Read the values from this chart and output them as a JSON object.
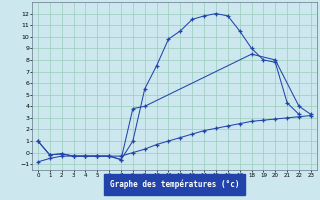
{
  "title": "Graphe des températures (°c)",
  "background_color": "#cce8ee",
  "grid_color": "#99ccbb",
  "line_color": "#2244aa",
  "xlim": [
    -0.5,
    23.5
  ],
  "ylim": [
    -1.5,
    13.0
  ],
  "xticks": [
    0,
    1,
    2,
    3,
    4,
    5,
    6,
    7,
    8,
    9,
    10,
    11,
    12,
    13,
    14,
    15,
    16,
    17,
    18,
    19,
    20,
    21,
    22,
    23
  ],
  "yticks": [
    -1,
    0,
    1,
    2,
    3,
    4,
    5,
    6,
    7,
    8,
    9,
    10,
    11,
    12
  ],
  "line1_x": [
    0,
    1,
    2,
    3,
    4,
    5,
    6,
    7,
    8,
    9,
    10,
    11,
    12,
    13,
    14,
    15,
    16,
    17,
    18,
    19,
    20,
    21,
    22
  ],
  "line1_y": [
    1.0,
    -0.2,
    -0.1,
    -0.3,
    -0.3,
    -0.3,
    -0.3,
    -0.6,
    1.0,
    5.5,
    7.5,
    9.8,
    10.5,
    11.5,
    11.8,
    12.0,
    11.8,
    10.5,
    9.0,
    8.0,
    7.8,
    4.3,
    3.3
  ],
  "line2_x": [
    0,
    1,
    2,
    3,
    4,
    5,
    6,
    7,
    8,
    9,
    18,
    20,
    22,
    23
  ],
  "line2_y": [
    1.0,
    -0.2,
    -0.1,
    -0.3,
    -0.3,
    -0.3,
    -0.3,
    -0.6,
    3.8,
    4.0,
    8.5,
    8.0,
    4.0,
    3.3
  ],
  "line3_x": [
    0,
    1,
    2,
    3,
    4,
    5,
    6,
    7,
    8,
    9,
    10,
    11,
    12,
    13,
    14,
    15,
    16,
    17,
    18,
    19,
    20,
    21,
    22,
    23
  ],
  "line3_y": [
    -0.8,
    -0.5,
    -0.3,
    -0.3,
    -0.3,
    -0.3,
    -0.3,
    -0.3,
    0.0,
    0.3,
    0.7,
    1.0,
    1.3,
    1.6,
    1.9,
    2.1,
    2.3,
    2.5,
    2.7,
    2.8,
    2.9,
    3.0,
    3.1,
    3.2
  ]
}
